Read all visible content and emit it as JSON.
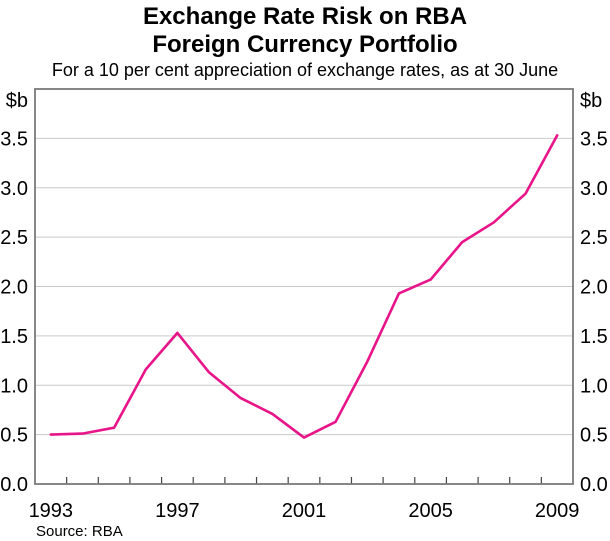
{
  "header": {
    "title_line1": "Exchange Rate Risk on RBA",
    "title_line2": "Foreign Currency Portfolio",
    "subtitle": "For a 10 per cent appreciation of exchange rates, as at 30 June"
  },
  "footer": {
    "source": "Source: RBA"
  },
  "chart_data": {
    "type": "line",
    "title": "Exchange Rate Risk on RBA Foreign Currency Portfolio",
    "subtitle": "For a 10 per cent appreciation of exchange rates, as at 30 June",
    "unit_label_left": "$b",
    "unit_label_right": "$b",
    "x": [
      1993,
      1994,
      1995,
      1996,
      1997,
      1998,
      1999,
      2000,
      2001,
      2002,
      2003,
      2004,
      2005,
      2006,
      2007,
      2008,
      2009
    ],
    "series": [
      {
        "name": "Exchange rate risk on RBA foreign currency portfolio",
        "values": [
          0.5,
          0.51,
          0.57,
          1.16,
          1.53,
          1.13,
          0.87,
          0.71,
          0.47,
          0.63,
          1.24,
          1.93,
          2.07,
          2.45,
          2.65,
          2.94,
          3.53
        ]
      }
    ],
    "ylim": [
      0,
      4.0
    ],
    "yticks": [
      0.0,
      0.5,
      1.0,
      1.5,
      2.0,
      2.5,
      3.0,
      3.5
    ],
    "ytick_labels": [
      "0.0",
      "0.5",
      "1.0",
      "1.5",
      "2.0",
      "2.5",
      "3.0",
      "3.5"
    ],
    "xtick_labeled_years": [
      1993,
      1997,
      2001,
      2005,
      2009
    ],
    "grid": true,
    "legend": "none",
    "colors": {
      "line": "#e81489",
      "gridline": "#c9c9c9",
      "frame": "#7a7a7a",
      "tick": "#444444",
      "text": "#000000"
    }
  }
}
